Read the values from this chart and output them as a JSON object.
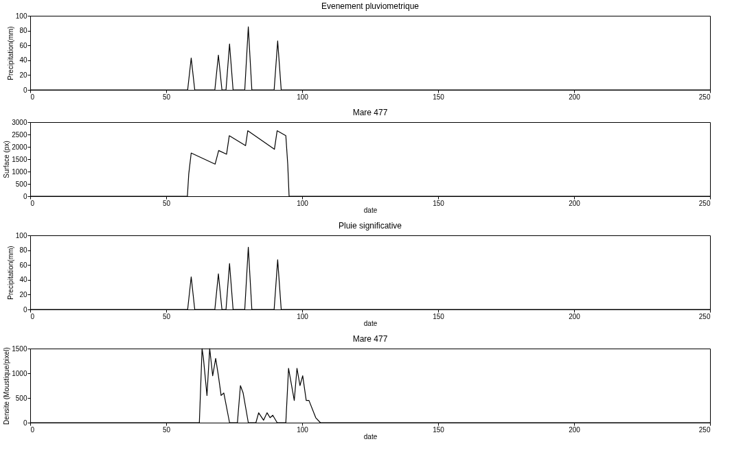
{
  "chart_data": [
    {
      "type": "line",
      "title": "Evenement pluviometrique",
      "ylabel": "Precipitation(mm)",
      "xlim": [
        0,
        250
      ],
      "xticks": [
        0,
        50,
        100,
        150,
        200,
        250
      ],
      "ylim": [
        0,
        100
      ],
      "yticks": [
        0,
        20,
        40,
        60,
        80,
        100
      ],
      "series": [
        {
          "color": "#000000",
          "x": [
            0,
            57.9,
            59.2,
            60.5,
            67.9,
            69.2,
            70.5,
            72,
            73.3,
            74.6,
            78.9,
            80.2,
            81.5,
            89.7,
            91,
            92.3,
            250
          ],
          "values": [
            0,
            0,
            43,
            0,
            0,
            47,
            0,
            0,
            62,
            0,
            0,
            85,
            0,
            0,
            66,
            0,
            0
          ]
        }
      ]
    },
    {
      "type": "line",
      "title": "Mare 477",
      "xlabel": "date",
      "ylabel": "Surface (px)",
      "xlim": [
        0,
        250
      ],
      "xticks": [
        0,
        50,
        100,
        150,
        200,
        250
      ],
      "ylim": [
        0,
        3000
      ],
      "yticks": [
        0,
        500,
        1000,
        1500,
        2000,
        2500,
        3000
      ],
      "series": [
        {
          "color": "#000000",
          "x": [
            0,
            57.8,
            58.3,
            59.2,
            68,
            69.3,
            72.2,
            73.2,
            79.2,
            80,
            89.8,
            90.8,
            94,
            94.7,
            95.2,
            250
          ],
          "values": [
            0,
            0,
            900,
            1750,
            1300,
            1850,
            1700,
            2450,
            2050,
            2650,
            1900,
            2650,
            2450,
            1300,
            0,
            0
          ]
        }
      ]
    },
    {
      "type": "line",
      "title": "Pluie significative",
      "xlabel": "date",
      "ylabel": "Precipitation(mm)",
      "xlim": [
        0,
        250
      ],
      "xticks": [
        0,
        50,
        100,
        150,
        200,
        250
      ],
      "ylim": [
        0,
        100
      ],
      "yticks": [
        0,
        20,
        40,
        60,
        80,
        100
      ],
      "series": [
        {
          "color": "#000000",
          "x": [
            0,
            57.9,
            59.2,
            60.5,
            67.9,
            69.2,
            70.5,
            72,
            73.3,
            74.6,
            78.9,
            80.2,
            81.5,
            89.7,
            91,
            92.3,
            250
          ],
          "values": [
            0,
            0,
            44,
            0,
            0,
            48,
            0,
            0,
            62,
            0,
            0,
            84,
            0,
            0,
            67,
            0,
            0
          ]
        }
      ]
    },
    {
      "type": "line",
      "title": "Mare 477",
      "xlabel": "date",
      "ylabel": "Densite (Moustique/pixel)",
      "xlim": [
        0,
        250
      ],
      "xticks": [
        0,
        50,
        100,
        150,
        200,
        250
      ],
      "ylim": [
        0,
        1500
      ],
      "yticks": [
        0,
        500,
        1000,
        1500
      ],
      "series": [
        {
          "color": "#000000",
          "x": [
            0,
            62.2,
            62.7,
            63.2,
            63.7,
            65,
            66,
            67.1,
            68.2,
            69.2,
            70.2,
            71.2,
            73.3,
            76.2,
            77.3,
            78.3,
            80.2,
            83,
            84,
            85.8,
            87.1,
            88.2,
            89.2,
            90.8,
            94,
            95,
            97.1,
            98.1,
            99.2,
            100.2,
            101.5,
            102.5,
            105,
            106.7,
            250
          ],
          "values": [
            0,
            0,
            750,
            1500,
            1300,
            550,
            1500,
            950,
            1300,
            950,
            550,
            600,
            0,
            0,
            750,
            600,
            0,
            0,
            200,
            50,
            200,
            100,
            150,
            0,
            0,
            1100,
            450,
            1100,
            750,
            950,
            450,
            450,
            100,
            0,
            0
          ]
        }
      ]
    }
  ]
}
